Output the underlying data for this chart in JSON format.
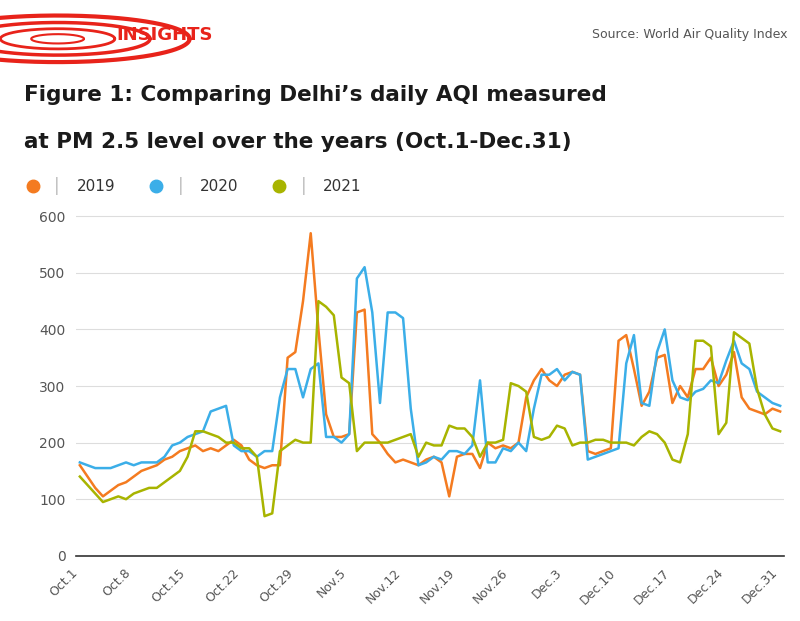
{
  "title_line1": "Figure 1: Comparing Delhi’s daily AQI measured",
  "title_line2": "at PM 2.5 level over the years (Oct.1-Dec.31)",
  "source_text": "Source: World Air Quality Index",
  "insights_text": "INSIGHTS",
  "background_color": "#ffffff",
  "years": [
    "2019",
    "2020",
    "2021"
  ],
  "colors": {
    "2019": "#F47B20",
    "2020": "#3BAEE8",
    "2021": "#A8B400"
  },
  "x_tick_labels": [
    "Oct.1",
    "Oct.8",
    "Oct.15",
    "Oct.22",
    "Oct.29",
    "Nov.5",
    "Nov.12",
    "Nov.19",
    "Nov.26",
    "Dec.3",
    "Dec.10",
    "Dec.17",
    "Dec.24",
    "Dec.31"
  ],
  "x_tick_positions": [
    0,
    7,
    14,
    21,
    28,
    35,
    42,
    49,
    56,
    63,
    70,
    77,
    84,
    91
  ],
  "ylim": [
    0,
    620
  ],
  "yticks": [
    0,
    100,
    200,
    300,
    400,
    500,
    600
  ],
  "data_2019": [
    160,
    140,
    120,
    105,
    115,
    125,
    130,
    140,
    150,
    155,
    160,
    170,
    175,
    185,
    190,
    195,
    185,
    190,
    185,
    195,
    205,
    195,
    170,
    160,
    155,
    160,
    160,
    350,
    360,
    450,
    570,
    400,
    250,
    210,
    210,
    215,
    430,
    435,
    215,
    200,
    180,
    165,
    170,
    165,
    160,
    170,
    175,
    165,
    105,
    175,
    180,
    180,
    155,
    200,
    190,
    195,
    190,
    200,
    280,
    310,
    330,
    310,
    300,
    320,
    325,
    320,
    185,
    180,
    185,
    190,
    380,
    390,
    330,
    265,
    290,
    350,
    355,
    270,
    300,
    280,
    330,
    330,
    350,
    300,
    320,
    360,
    280,
    260,
    255,
    250,
    260,
    255
  ],
  "data_2020": [
    165,
    160,
    155,
    155,
    155,
    160,
    165,
    160,
    165,
    165,
    165,
    175,
    195,
    200,
    210,
    215,
    220,
    255,
    260,
    265,
    195,
    185,
    185,
    175,
    185,
    185,
    280,
    330,
    330,
    280,
    330,
    340,
    210,
    210,
    200,
    215,
    490,
    510,
    430,
    270,
    430,
    430,
    420,
    260,
    160,
    165,
    175,
    170,
    185,
    185,
    180,
    195,
    310,
    165,
    165,
    190,
    185,
    200,
    185,
    260,
    320,
    320,
    330,
    310,
    325,
    320,
    170,
    175,
    180,
    185,
    190,
    340,
    390,
    270,
    265,
    360,
    400,
    310,
    280,
    275,
    290,
    295,
    310,
    305,
    345,
    380,
    340,
    330,
    290,
    280,
    270,
    265
  ],
  "data_2021": [
    140,
    125,
    110,
    95,
    100,
    105,
    100,
    110,
    115,
    120,
    120,
    130,
    140,
    150,
    175,
    220,
    220,
    215,
    210,
    200,
    200,
    190,
    190,
    175,
    70,
    75,
    185,
    195,
    205,
    200,
    200,
    450,
    440,
    425,
    315,
    305,
    185,
    200,
    200,
    200,
    200,
    205,
    210,
    215,
    175,
    200,
    195,
    195,
    230,
    225,
    225,
    210,
    175,
    200,
    200,
    205,
    305,
    300,
    290,
    210,
    205,
    210,
    230,
    225,
    195,
    200,
    200,
    205,
    205,
    200,
    200,
    200,
    195,
    210,
    220,
    215,
    200,
    170,
    165,
    215,
    380,
    380,
    370,
    215,
    235,
    395,
    385,
    375,
    295,
    250,
    225,
    220
  ]
}
